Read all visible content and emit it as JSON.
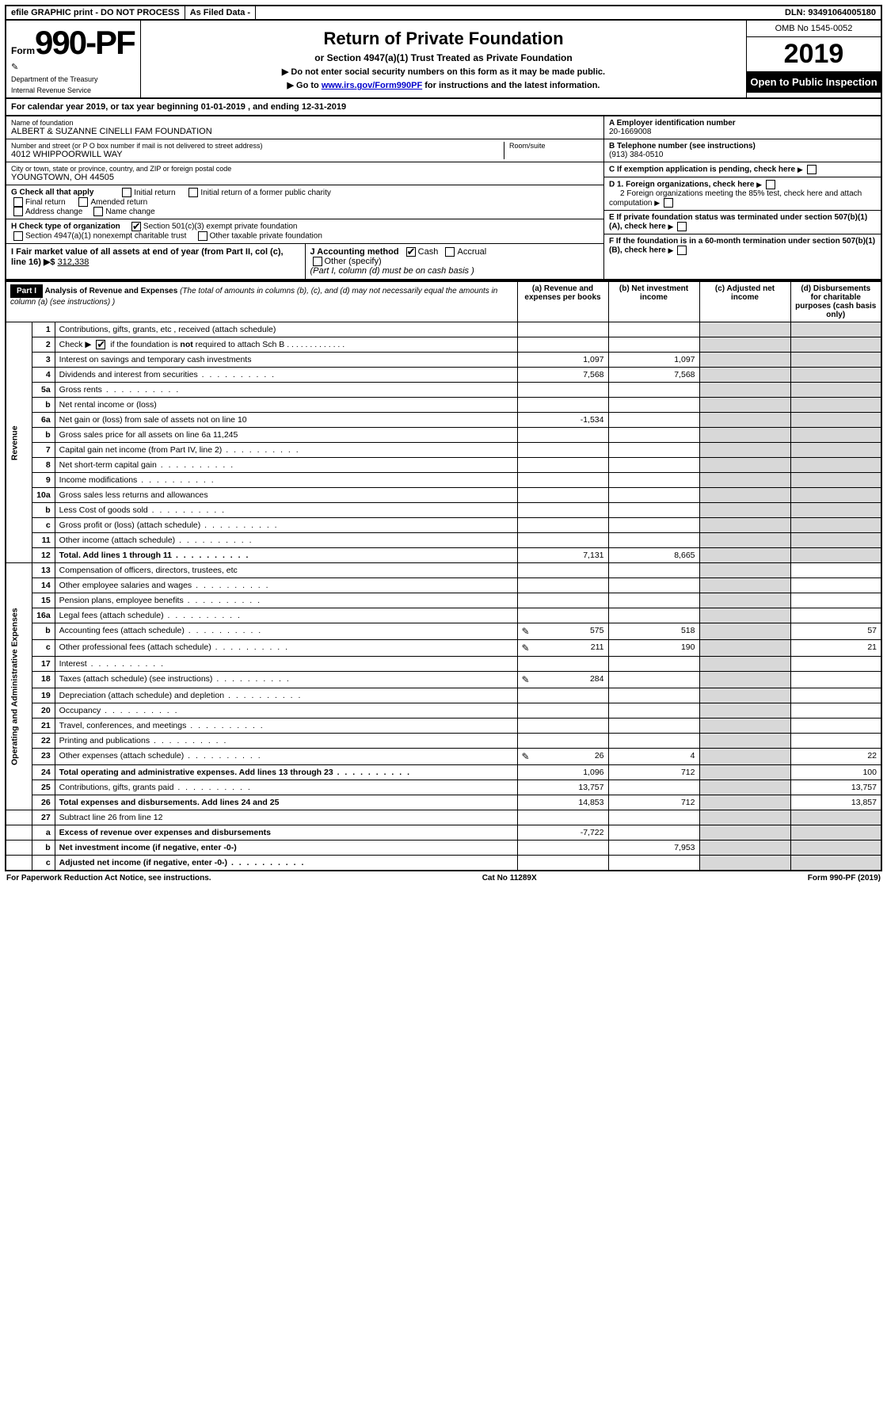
{
  "topbar": {
    "efile": "efile GRAPHIC print - DO NOT PROCESS",
    "asfiled": "As Filed Data -",
    "dln": "DLN: 93491064005180"
  },
  "header": {
    "form_prefix": "Form",
    "form_number": "990-PF",
    "dept1": "Department of the Treasury",
    "dept2": "Internal Revenue Service",
    "title": "Return of Private Foundation",
    "subtitle": "or Section 4947(a)(1) Trust Treated as Private Foundation",
    "note1": "▶ Do not enter social security numbers on this form as it may be made public.",
    "note2_pre": "▶ Go to ",
    "note2_link": "www.irs.gov/Form990PF",
    "note2_post": " for instructions and the latest information.",
    "omb": "OMB No 1545-0052",
    "year": "2019",
    "open": "Open to Public Inspection"
  },
  "cal": {
    "text_pre": "For calendar year 2019, or tax year beginning ",
    "begin": "01-01-2019",
    "text_mid": " , and ending ",
    "end": "12-31-2019"
  },
  "info": {
    "name_lbl": "Name of foundation",
    "name": "ALBERT & SUZANNE CINELLI FAM FOUNDATION",
    "addr_lbl": "Number and street (or P O  box number if mail is not delivered to street address)",
    "addr": "4012 WHIPPOORWILL WAY",
    "room_lbl": "Room/suite",
    "city_lbl": "City or town, state or province, country, and ZIP or foreign postal code",
    "city": "YOUNGTOWN, OH  44505",
    "A_lbl": "A Employer identification number",
    "A_val": "20-1669008",
    "B_lbl": "B Telephone number (see instructions)",
    "B_val": "(913) 384-0510",
    "C_lbl": "C If exemption application is pending, check here",
    "D1_lbl": "D 1. Foreign organizations, check here",
    "D2_lbl": "2  Foreign organizations meeting the 85% test, check here and attach computation",
    "E_lbl": "E  If private foundation status was terminated under section 507(b)(1)(A), check here",
    "F_lbl": "F  If the foundation is in a 60-month termination under section 507(b)(1)(B), check here"
  },
  "G": {
    "label": "G Check all that apply",
    "opts": [
      "Initial return",
      "Initial return of a former public charity",
      "Final return",
      "Amended return",
      "Address change",
      "Name change"
    ]
  },
  "H": {
    "label": "H Check type of organization",
    "opt1": "Section 501(c)(3) exempt private foundation",
    "opt2": "Section 4947(a)(1) nonexempt charitable trust",
    "opt3": "Other taxable private foundation"
  },
  "I": {
    "label": "I Fair market value of all assets at end of year (from Part II, col  (c), line 16) ▶$",
    "val": "312,338"
  },
  "J": {
    "label": "J Accounting method",
    "cash": "Cash",
    "accrual": "Accrual",
    "other": "Other (specify)",
    "note": "(Part I, column (d) must be on cash basis )"
  },
  "part1": {
    "tag": "Part I",
    "title": "Analysis of Revenue and Expenses",
    "title_note": "(The total of amounts in columns (b), (c), and (d) may not necessarily equal the amounts in column (a) (see instructions) )",
    "col_a": "(a) Revenue and expenses per books",
    "col_b": "(b) Net investment income",
    "col_c": "(c) Adjusted net income",
    "col_d": "(d) Disbursements for charitable purposes (cash basis only)"
  },
  "side_rev": "Revenue",
  "side_exp": "Operating and Administrative Expenses",
  "rows": [
    {
      "n": "1",
      "d": "Contributions, gifts, grants, etc , received (attach schedule)"
    },
    {
      "n": "2",
      "d": "Check ▶ ☑ if the foundation is not required to attach Sch B",
      "d_html": true
    },
    {
      "n": "3",
      "d": "Interest on savings and temporary cash investments",
      "a": "1,097",
      "b": "1,097"
    },
    {
      "n": "4",
      "d": "Dividends and interest from securities",
      "a": "7,568",
      "b": "7,568",
      "dots": true
    },
    {
      "n": "5a",
      "d": "Gross rents",
      "dots": true
    },
    {
      "n": "b",
      "d": "Net rental income or (loss)"
    },
    {
      "n": "6a",
      "d": "Net gain or (loss) from sale of assets not on line 10",
      "a": "-1,534"
    },
    {
      "n": "b",
      "d": "Gross sales price for all assets on line 6a           11,245"
    },
    {
      "n": "7",
      "d": "Capital gain net income (from Part IV, line 2)",
      "dots": true
    },
    {
      "n": "8",
      "d": "Net short-term capital gain",
      "dots": true
    },
    {
      "n": "9",
      "d": "Income modifications",
      "dots": true
    },
    {
      "n": "10a",
      "d": "Gross sales less returns and allowances"
    },
    {
      "n": "b",
      "d": "Less  Cost of goods sold",
      "dots": true
    },
    {
      "n": "c",
      "d": "Gross profit or (loss) (attach schedule)",
      "dots": true
    },
    {
      "n": "11",
      "d": "Other income (attach schedule)",
      "dots": true
    },
    {
      "n": "12",
      "d": "Total. Add lines 1 through 11",
      "a": "7,131",
      "b": "8,665",
      "bold": true,
      "dots": true
    }
  ],
  "exp_rows": [
    {
      "n": "13",
      "d": "Compensation of officers, directors, trustees, etc"
    },
    {
      "n": "14",
      "d": "Other employee salaries and wages",
      "dots": true
    },
    {
      "n": "15",
      "d": "Pension plans, employee benefits",
      "dots": true
    },
    {
      "n": "16a",
      "d": "Legal fees (attach schedule)",
      "dots": true
    },
    {
      "n": "b",
      "d": "Accounting fees (attach schedule)",
      "a": "575",
      "b": "518",
      "dd": "57",
      "icon": true,
      "dots": true
    },
    {
      "n": "c",
      "d": "Other professional fees (attach schedule)",
      "a": "211",
      "b": "190",
      "dd": "21",
      "icon": true,
      "dots": true
    },
    {
      "n": "17",
      "d": "Interest",
      "dots": true
    },
    {
      "n": "18",
      "d": "Taxes (attach schedule) (see instructions)",
      "a": "284",
      "icon": true,
      "dots": true
    },
    {
      "n": "19",
      "d": "Depreciation (attach schedule) and depletion",
      "dots": true
    },
    {
      "n": "20",
      "d": "Occupancy",
      "dots": true
    },
    {
      "n": "21",
      "d": "Travel, conferences, and meetings",
      "dots": true
    },
    {
      "n": "22",
      "d": "Printing and publications",
      "dots": true
    },
    {
      "n": "23",
      "d": "Other expenses (attach schedule)",
      "a": "26",
      "b": "4",
      "dd": "22",
      "icon": true,
      "dots": true
    },
    {
      "n": "24",
      "d": "Total operating and administrative expenses. Add lines 13 through 23",
      "a": "1,096",
      "b": "712",
      "dd": "100",
      "bold": true,
      "dots": true
    },
    {
      "n": "25",
      "d": "Contributions, gifts, grants paid",
      "a": "13,757",
      "dd": "13,757",
      "dots": true
    },
    {
      "n": "26",
      "d": "Total expenses and disbursements. Add lines 24 and 25",
      "a": "14,853",
      "b": "712",
      "dd": "13,857",
      "bold": true
    }
  ],
  "net_rows": [
    {
      "n": "27",
      "d": "Subtract line 26 from line 12"
    },
    {
      "n": "a",
      "d": "Excess of revenue over expenses and disbursements",
      "a": "-7,722",
      "bold": true
    },
    {
      "n": "b",
      "d": "Net investment income (if negative, enter -0-)",
      "b": "7,953",
      "bold": true
    },
    {
      "n": "c",
      "d": "Adjusted net income (if negative, enter -0-)",
      "bold": true,
      "dots": true
    }
  ],
  "footer": {
    "left": "For Paperwork Reduction Act Notice, see instructions.",
    "mid": "Cat  No  11289X",
    "right": "Form 990-PF (2019)"
  }
}
